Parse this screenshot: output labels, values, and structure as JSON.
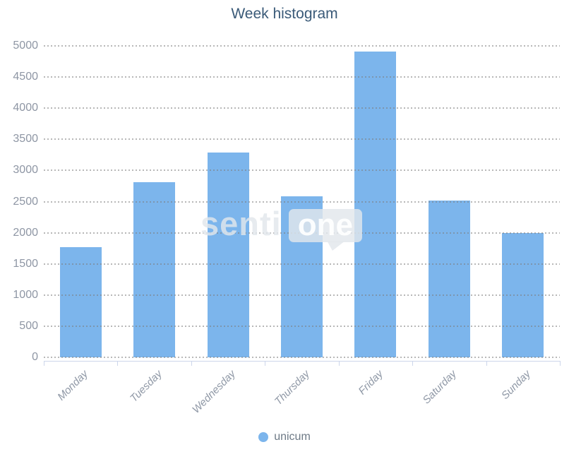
{
  "title": "Week histogram",
  "chart_data": {
    "type": "bar",
    "title": "Week histogram",
    "categories": [
      "Monday",
      "Tuesday",
      "Wednesday",
      "Thursday",
      "Friday",
      "Saturday",
      "Sunday"
    ],
    "series": [
      {
        "name": "unicum",
        "color": "#7cb5ec",
        "values": [
          1780,
          2820,
          3300,
          2600,
          4920,
          2530,
          2010
        ]
      }
    ],
    "xlabel": "",
    "ylabel": "",
    "ylim": [
      0,
      5000
    ],
    "yticks": [
      0,
      500,
      1000,
      1500,
      2000,
      2500,
      3000,
      3500,
      4000,
      4500,
      5000
    ],
    "grid": "horizontal-dotted",
    "legend_position": "bottom-center"
  },
  "legend": {
    "items": [
      {
        "label": "unicum",
        "marker_color": "#7cb5ec"
      }
    ]
  },
  "watermark": {
    "text": "senti",
    "bubble_text": "one"
  },
  "colors": {
    "bar": "#7cb5ec",
    "title_text": "#3a5a78",
    "axis_label_text": "#8e96a4",
    "x_label_text": "#8f98a6",
    "axis_line": "#ccd6eb",
    "legend_text": "#6e7a86"
  }
}
